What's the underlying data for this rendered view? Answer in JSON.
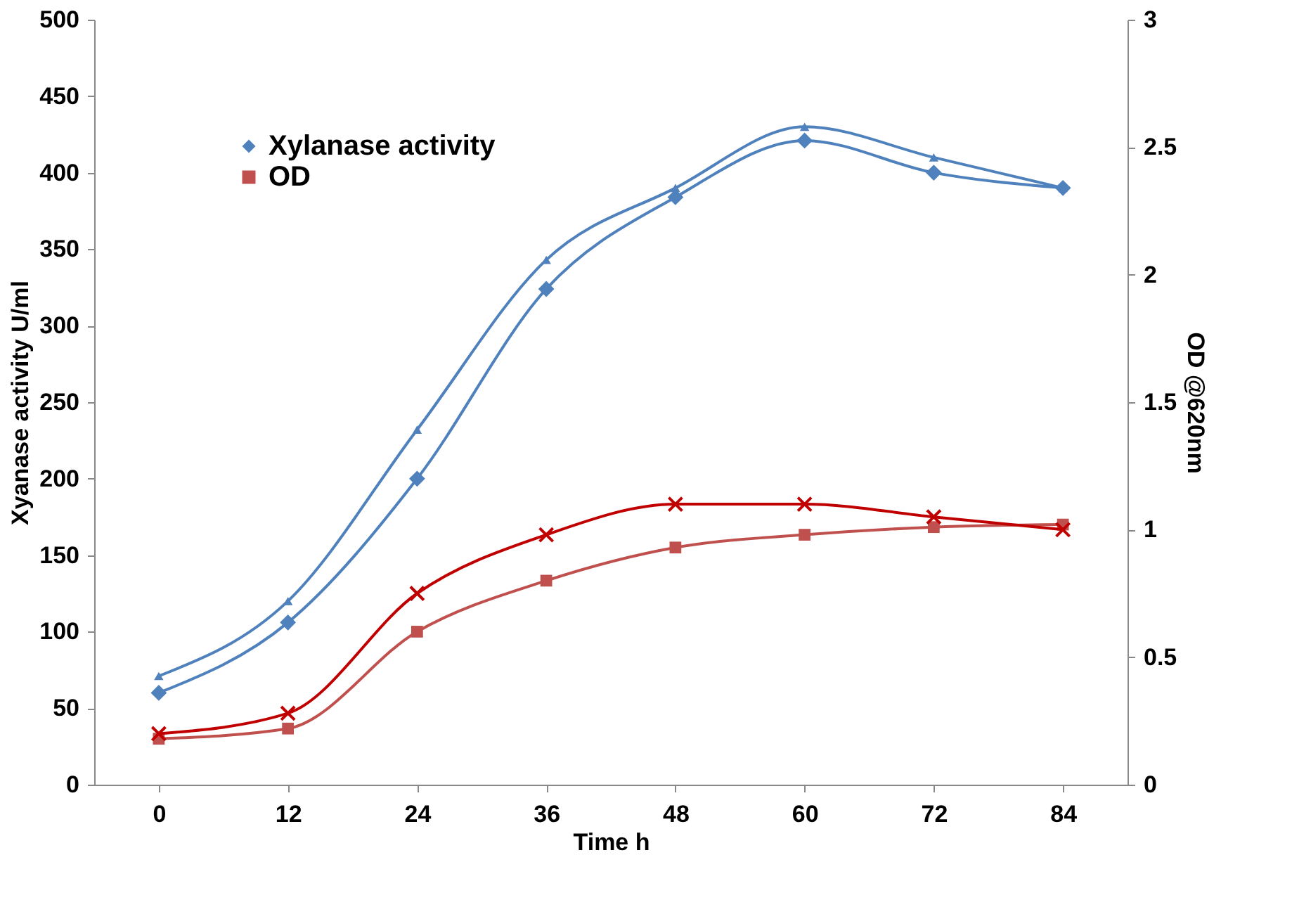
{
  "chart_data": {
    "type": "line",
    "xlabel": "Time h",
    "ylabel": "Xyanase activity U/ml",
    "y2label": "OD @620nm",
    "categories": [
      "0",
      "12",
      "24",
      "36",
      "48",
      "60",
      "72",
      "84"
    ],
    "series": [
      {
        "name": "Xylanase activity",
        "color": "#4f81bd",
        "marker": "diamond",
        "values": [
          60,
          106,
          200,
          324,
          384,
          421,
          400,
          390
        ]
      },
      {
        "color": "#4f81bd",
        "marker": "triangle",
        "values": [
          71,
          120,
          232,
          343,
          390,
          430,
          410,
          390
        ]
      },
      {
        "name": "OD",
        "color": "#c0504d",
        "marker": "square",
        "axis": "y2",
        "values": [
          0.18,
          0.22,
          0.6,
          0.8,
          0.93,
          0.98,
          1.01,
          1.02
        ]
      },
      {
        "color": "#c00000",
        "marker": "cross",
        "axis": "y2",
        "values": [
          0.2,
          0.28,
          0.75,
          0.98,
          1.1,
          1.1,
          1.05,
          1.0
        ]
      }
    ],
    "ylim": [
      0,
      500
    ],
    "yticks": [
      0,
      50,
      100,
      150,
      200,
      250,
      300,
      350,
      400,
      450,
      500
    ],
    "y2lim": [
      0,
      3
    ],
    "y2ticks": [
      0,
      0.5,
      1,
      1.5,
      2,
      2.5,
      3
    ],
    "legend": "top left",
    "grid": false,
    "line_style": "solid"
  }
}
